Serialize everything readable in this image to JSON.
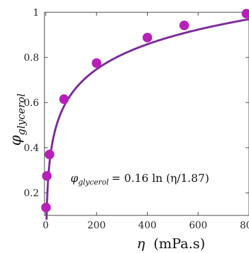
{
  "chart_data": {
    "type": "scatter",
    "x_label_symbol": "η",
    "x_label_unit": "(mPa.s)",
    "y_label_base": "φ",
    "y_label_sub": "glycerol",
    "xlim": [
      -5,
      800
    ],
    "ylim": [
      0.1,
      1.0
    ],
    "x_ticks": [
      0,
      200,
      400,
      600,
      800
    ],
    "y_ticks": [
      0.2,
      0.4,
      0.6,
      0.8,
      1.0
    ],
    "x_tick_labels": [
      "0",
      "200",
      "400",
      "600",
      "800"
    ],
    "y_tick_labels": [
      "0.2",
      "0.4",
      "0.6",
      "0.8",
      "1"
    ],
    "grid": false,
    "series": [
      {
        "kind": "points",
        "color": "#b81fb8",
        "x": [
          1.1,
          4.4,
          15,
          72,
          200,
          400,
          545,
          790
        ],
        "y": [
          0.135,
          0.275,
          0.37,
          0.615,
          0.775,
          0.888,
          0.942,
          0.994
        ]
      },
      {
        "kind": "fit",
        "color": "#7b2b9a",
        "coef": 0.16,
        "scale": 1.87
      }
    ],
    "annotation": {
      "lhs_base": "φ",
      "lhs_sub": "glycerol",
      "rhs": "= 0.16 ln (η/1.87)"
    }
  }
}
